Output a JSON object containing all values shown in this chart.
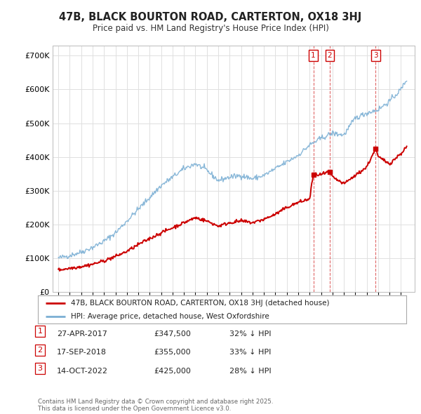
{
  "title": "47B, BLACK BOURTON ROAD, CARTERTON, OX18 3HJ",
  "subtitle": "Price paid vs. HM Land Registry's House Price Index (HPI)",
  "background_color": "#ffffff",
  "plot_bg_color": "#ffffff",
  "grid_color": "#e0e0e0",
  "hpi_color": "#7bafd4",
  "price_color": "#cc0000",
  "sale1_x": 2017.33,
  "sale1_y": 347500,
  "sale1_date": "27-APR-2017",
  "sale1_price_str": "£347,500",
  "sale1_pct": "32% ↓ HPI",
  "sale2_x": 2018.75,
  "sale2_y": 355000,
  "sale2_date": "17-SEP-2018",
  "sale2_price_str": "£355,000",
  "sale2_pct": "33% ↓ HPI",
  "sale3_x": 2022.79,
  "sale3_y": 425000,
  "sale3_date": "14-OCT-2022",
  "sale3_price_str": "£425,000",
  "sale3_pct": "28% ↓ HPI",
  "legend_line1": "47B, BLACK BOURTON ROAD, CARTERTON, OX18 3HJ (detached house)",
  "legend_line2": "HPI: Average price, detached house, West Oxfordshire",
  "footer": "Contains HM Land Registry data © Crown copyright and database right 2025.\nThis data is licensed under the Open Government Licence v3.0.",
  "ylim": [
    0,
    730000
  ],
  "xlim_start": 1994.5,
  "xlim_end": 2026.2,
  "hpi_waypoints_x": [
    1995,
    1996,
    1997,
    1998,
    1999,
    2000,
    2001,
    2002,
    2003,
    2004,
    2005,
    2006,
    2007,
    2008,
    2009,
    2010,
    2011,
    2012,
    2013,
    2014,
    2015,
    2016,
    2017,
    2018,
    2019,
    2020,
    2021,
    2022,
    2023,
    2024,
    2025,
    2025.5
  ],
  "hpi_waypoints_y": [
    100000,
    108000,
    118000,
    132000,
    150000,
    175000,
    210000,
    245000,
    280000,
    315000,
    340000,
    365000,
    380000,
    360000,
    330000,
    340000,
    345000,
    335000,
    345000,
    365000,
    385000,
    405000,
    435000,
    455000,
    470000,
    465000,
    515000,
    530000,
    540000,
    565000,
    600000,
    630000
  ],
  "price_waypoints_x": [
    1995,
    1996,
    1997,
    1998,
    1999,
    2000,
    2001,
    2002,
    2003,
    2004,
    2005,
    2006,
    2007,
    2008,
    2009,
    2010,
    2011,
    2012,
    2013,
    2014,
    2015,
    2016,
    2017,
    2017.32,
    2017.34,
    2018,
    2018.74,
    2018.76,
    2019,
    2020,
    2021,
    2022,
    2022.78,
    2022.8,
    2023,
    2024,
    2025,
    2025.5
  ],
  "price_waypoints_y": [
    65000,
    70000,
    75000,
    82000,
    92000,
    105000,
    120000,
    140000,
    158000,
    175000,
    190000,
    205000,
    220000,
    210000,
    195000,
    205000,
    210000,
    205000,
    215000,
    230000,
    250000,
    265000,
    275000,
    347500,
    347500,
    347500,
    355000,
    355000,
    340000,
    320000,
    345000,
    370000,
    425000,
    425000,
    400000,
    380000,
    410000,
    430000
  ]
}
